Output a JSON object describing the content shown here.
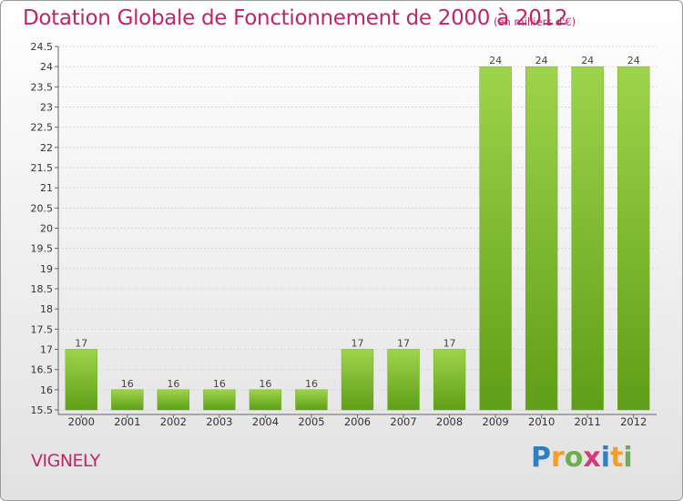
{
  "chart_data": {
    "type": "bar",
    "title": "Dotation Globale de Fonctionnement de 2000 à 2012",
    "subtitle": "(en milliers d'€)",
    "categories": [
      "2000",
      "2001",
      "2002",
      "2003",
      "2004",
      "2005",
      "2006",
      "2007",
      "2008",
      "2009",
      "2010",
      "2011",
      "2012"
    ],
    "values": [
      17,
      16,
      16,
      16,
      16,
      16,
      17,
      17,
      17,
      24,
      24,
      24,
      24
    ],
    "data_labels": [
      "17",
      "16",
      "16",
      "16",
      "16",
      "16",
      "17",
      "17",
      "17",
      "24",
      "24",
      "24",
      "24"
    ],
    "ylim": [
      15.5,
      24.5
    ],
    "yticks": [
      "15.5",
      "16",
      "16.5",
      "17",
      "17.5",
      "18",
      "18.5",
      "19",
      "19.5",
      "20",
      "20.5",
      "21",
      "21.5",
      "22",
      "22.5",
      "23",
      "23.5",
      "24",
      "24.5"
    ],
    "grid": true,
    "bar_color": "#7cbd2a"
  },
  "footer": {
    "city": "VIGNELY",
    "logo_letters": [
      "P",
      "r",
      "o",
      "x",
      "i",
      "t",
      "i"
    ],
    "logo_colors": [
      "#2f7fc1",
      "#f0a02a",
      "#6ab04c",
      "#d63a7a",
      "#2f7fc1",
      "#f0a02a",
      "#6ab04c"
    ]
  }
}
